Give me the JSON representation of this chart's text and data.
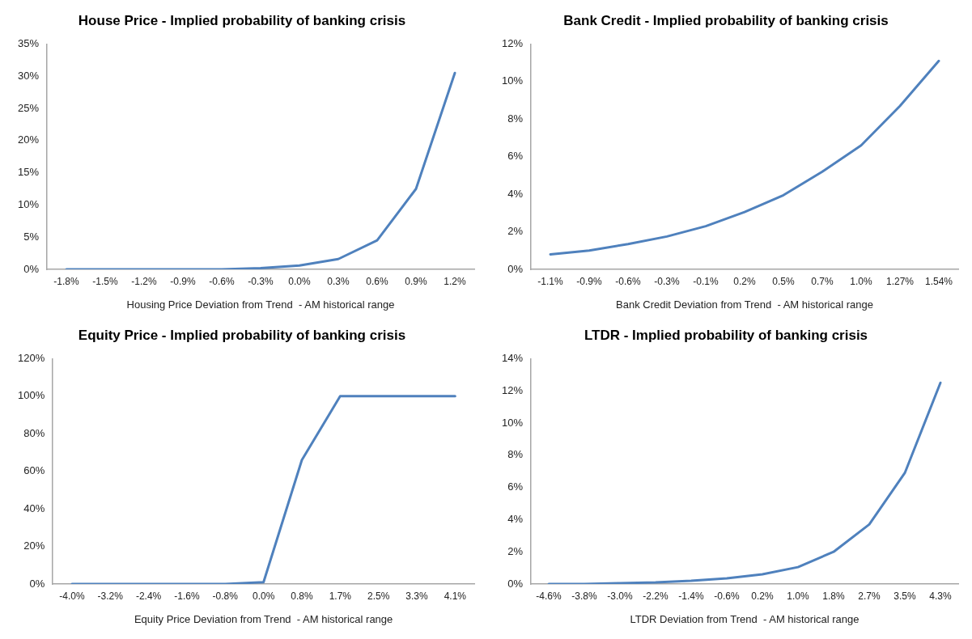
{
  "chart_data": [
    {
      "type": "line",
      "title": "House Price - Implied probability of banking crisis",
      "xlabel": "Housing Price Deviation from Trend  - AM historical range",
      "categories": [
        "-1.8%",
        "-1.5%",
        "-1.2%",
        "-0.9%",
        "-0.6%",
        "-0.3%",
        "0.0%",
        "0.3%",
        "0.6%",
        "0.9%",
        "1.2%"
      ],
      "series": [
        {
          "color": "#4f81bd",
          "values": [
            0,
            0,
            0,
            0,
            0,
            0.2,
            0.6,
            1.6,
            4.5,
            12.5,
            30.5
          ]
        }
      ],
      "ylim": [
        0,
        35
      ],
      "yticks": [
        {
          "value": 0,
          "label": "0%"
        },
        {
          "value": 5,
          "label": "5%"
        },
        {
          "value": 10,
          "label": "10%"
        },
        {
          "value": 15,
          "label": "15%"
        },
        {
          "value": 20,
          "label": "20%"
        },
        {
          "value": 25,
          "label": "25%"
        },
        {
          "value": 30,
          "label": "30%"
        },
        {
          "value": 35,
          "label": "35%"
        }
      ],
      "grid": false,
      "legend": false,
      "marker": "none",
      "line_style": "solid"
    },
    {
      "type": "line",
      "title": "Bank Credit - Implied probability of banking crisis",
      "xlabel": "Bank Credit Deviation from Trend  - AM historical range",
      "categories": [
        "-1.1%",
        "-0.9%",
        "-0.6%",
        "-0.3%",
        "-0.1%",
        "0.2%",
        "0.5%",
        "0.7%",
        "1.0%",
        "1.27%",
        "1.54%"
      ],
      "series": [
        {
          "color": "#4f81bd",
          "values": [
            0.8,
            1.0,
            1.35,
            1.75,
            2.3,
            3.05,
            3.95,
            5.2,
            6.6,
            8.7,
            11.1
          ]
        }
      ],
      "ylim": [
        0,
        12
      ],
      "yticks": [
        {
          "value": 0,
          "label": "0%"
        },
        {
          "value": 2,
          "label": "2%"
        },
        {
          "value": 4,
          "label": "4%"
        },
        {
          "value": 6,
          "label": "6%"
        },
        {
          "value": 8,
          "label": "8%"
        },
        {
          "value": 10,
          "label": "10%"
        },
        {
          "value": 12,
          "label": "12%"
        }
      ],
      "grid": false,
      "legend": false,
      "marker": "none",
      "line_style": "solid"
    },
    {
      "type": "line",
      "title": "Equity Price - Implied probability of banking crisis",
      "xlabel": "Equity Price Deviation from Trend  - AM historical range",
      "categories": [
        "-4.0%",
        "-3.2%",
        "-2.4%",
        "-1.6%",
        "-0.8%",
        "0.0%",
        "0.8%",
        "1.7%",
        "2.5%",
        "3.3%",
        "4.1%"
      ],
      "series": [
        {
          "color": "#4f81bd",
          "values": [
            0,
            0,
            0,
            0,
            0,
            1,
            66,
            100,
            100,
            100,
            100
          ]
        }
      ],
      "ylim": [
        0,
        120
      ],
      "yticks": [
        {
          "value": 0,
          "label": "0%"
        },
        {
          "value": 20,
          "label": "20%"
        },
        {
          "value": 40,
          "label": "40%"
        },
        {
          "value": 60,
          "label": "60%"
        },
        {
          "value": 80,
          "label": "80%"
        },
        {
          "value": 100,
          "label": "100%"
        },
        {
          "value": 120,
          "label": "120%"
        }
      ],
      "grid": false,
      "legend": false,
      "marker": "none",
      "line_style": "solid"
    },
    {
      "type": "line",
      "title": "LTDR - Implied probability of banking crisis",
      "xlabel": "LTDR Deviation from Trend  - AM historical range",
      "categories": [
        "-4.6%",
        "-3.8%",
        "-3.0%",
        "-2.2%",
        "-1.4%",
        "-0.6%",
        "0.2%",
        "1.0%",
        "1.8%",
        "2.7%",
        "3.5%",
        "4.3%"
      ],
      "series": [
        {
          "color": "#4f81bd",
          "values": [
            0,
            0,
            0.05,
            0.1,
            0.2,
            0.35,
            0.6,
            1.05,
            2.0,
            3.7,
            6.9,
            12.5
          ]
        }
      ],
      "ylim": [
        0,
        14
      ],
      "yticks": [
        {
          "value": 0,
          "label": "0%"
        },
        {
          "value": 2,
          "label": "2%"
        },
        {
          "value": 4,
          "label": "4%"
        },
        {
          "value": 6,
          "label": "6%"
        },
        {
          "value": 8,
          "label": "8%"
        },
        {
          "value": 10,
          "label": "10%"
        },
        {
          "value": 12,
          "label": "12%"
        },
        {
          "value": 14,
          "label": "14%"
        }
      ],
      "grid": false,
      "legend": false,
      "marker": "none",
      "line_style": "solid"
    }
  ]
}
